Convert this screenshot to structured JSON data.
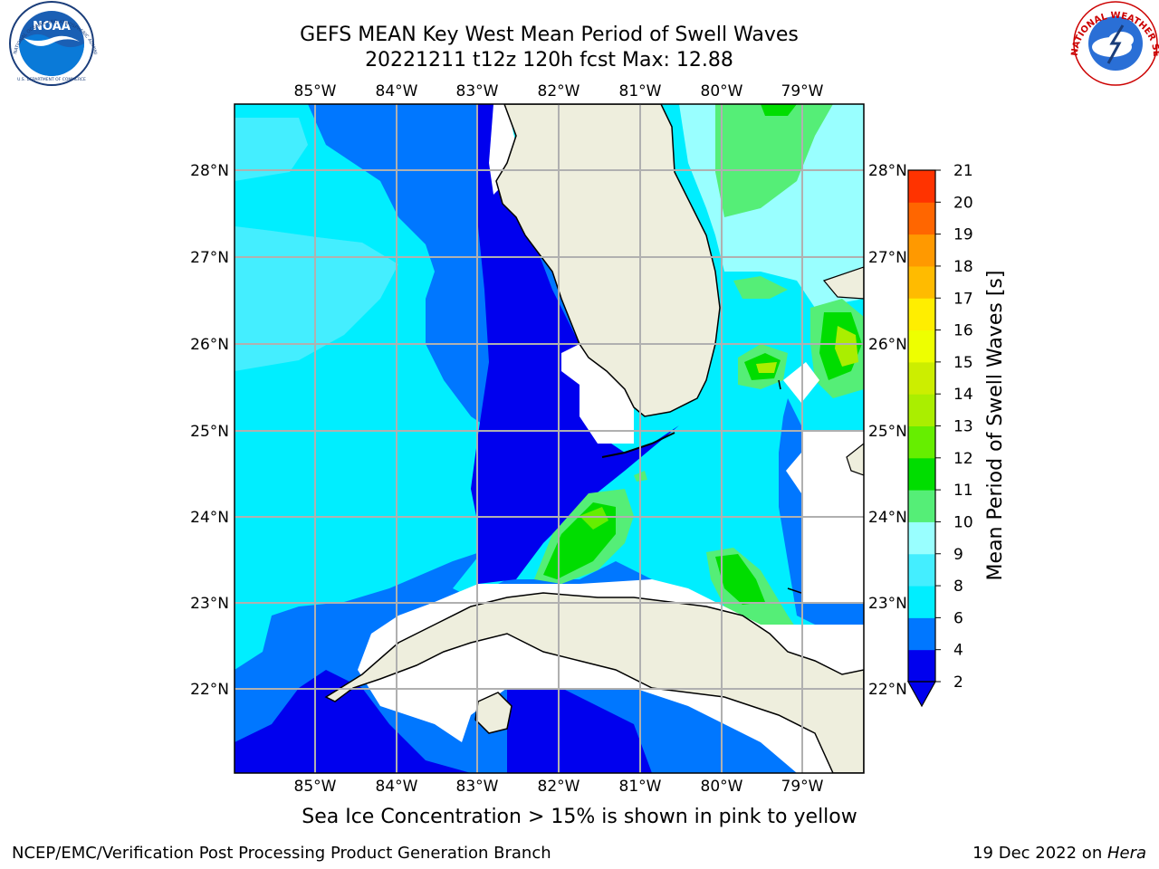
{
  "title_line1": "GEFS MEAN Key West Mean Period of Swell Waves",
  "title_line2": "20221211 t12z 120h fcst   Max: 12.88",
  "logos": {
    "left": {
      "name": "NOAA",
      "ring_text": "NATIONAL OCEANIC AND ATMOSPHERIC ADMINISTRATION",
      "bottom_text": "U.S. DEPARTMENT OF COMMERCE"
    },
    "right": {
      "ring_text": "NATIONAL WEATHER SERVICE"
    }
  },
  "lon_ticks": [
    "85°W",
    "84°W",
    "83°W",
    "82°W",
    "81°W",
    "80°W",
    "79°W"
  ],
  "lat_ticks": [
    "28°N",
    "27°N",
    "26°N",
    "25°N",
    "24°N",
    "23°N",
    "22°N"
  ],
  "colorbar": {
    "label": "Mean Period of Swell Waves [s]",
    "levels": [
      "2",
      "4",
      "6",
      "8",
      "9",
      "10",
      "11",
      "12",
      "13",
      "14",
      "15",
      "16",
      "17",
      "18",
      "19",
      "20",
      "21"
    ],
    "colors": [
      "#0000ee",
      "#0077ff",
      "#00eeff",
      "#44eeff",
      "#99ffff",
      "#55ee77",
      "#00dd00",
      "#66ee00",
      "#aaee00",
      "#ccee00",
      "#eeff00",
      "#ffee00",
      "#ffbb00",
      "#ff9900",
      "#ff6600",
      "#ff3300",
      "#ff0000"
    ],
    "under_color": "#0000ee"
  },
  "palette": {
    "land": "#eeeedd",
    "deep": "#0000ee",
    "blue": "#0077ff",
    "cyan": "#00eeff",
    "lightcyan": "#99ffff",
    "midgreen": "#55ee77",
    "green": "#00dd00",
    "yellowgreen": "#aaee00",
    "grid": "#b0b0b0"
  },
  "caption": "Sea Ice Concentration > 15% is shown in pink to yellow",
  "footer_left": "NCEP/EMC/Verification Post Processing Product Generation Branch",
  "footer_right_prefix": "19 Dec 2022 on ",
  "footer_right_host": "Hera"
}
